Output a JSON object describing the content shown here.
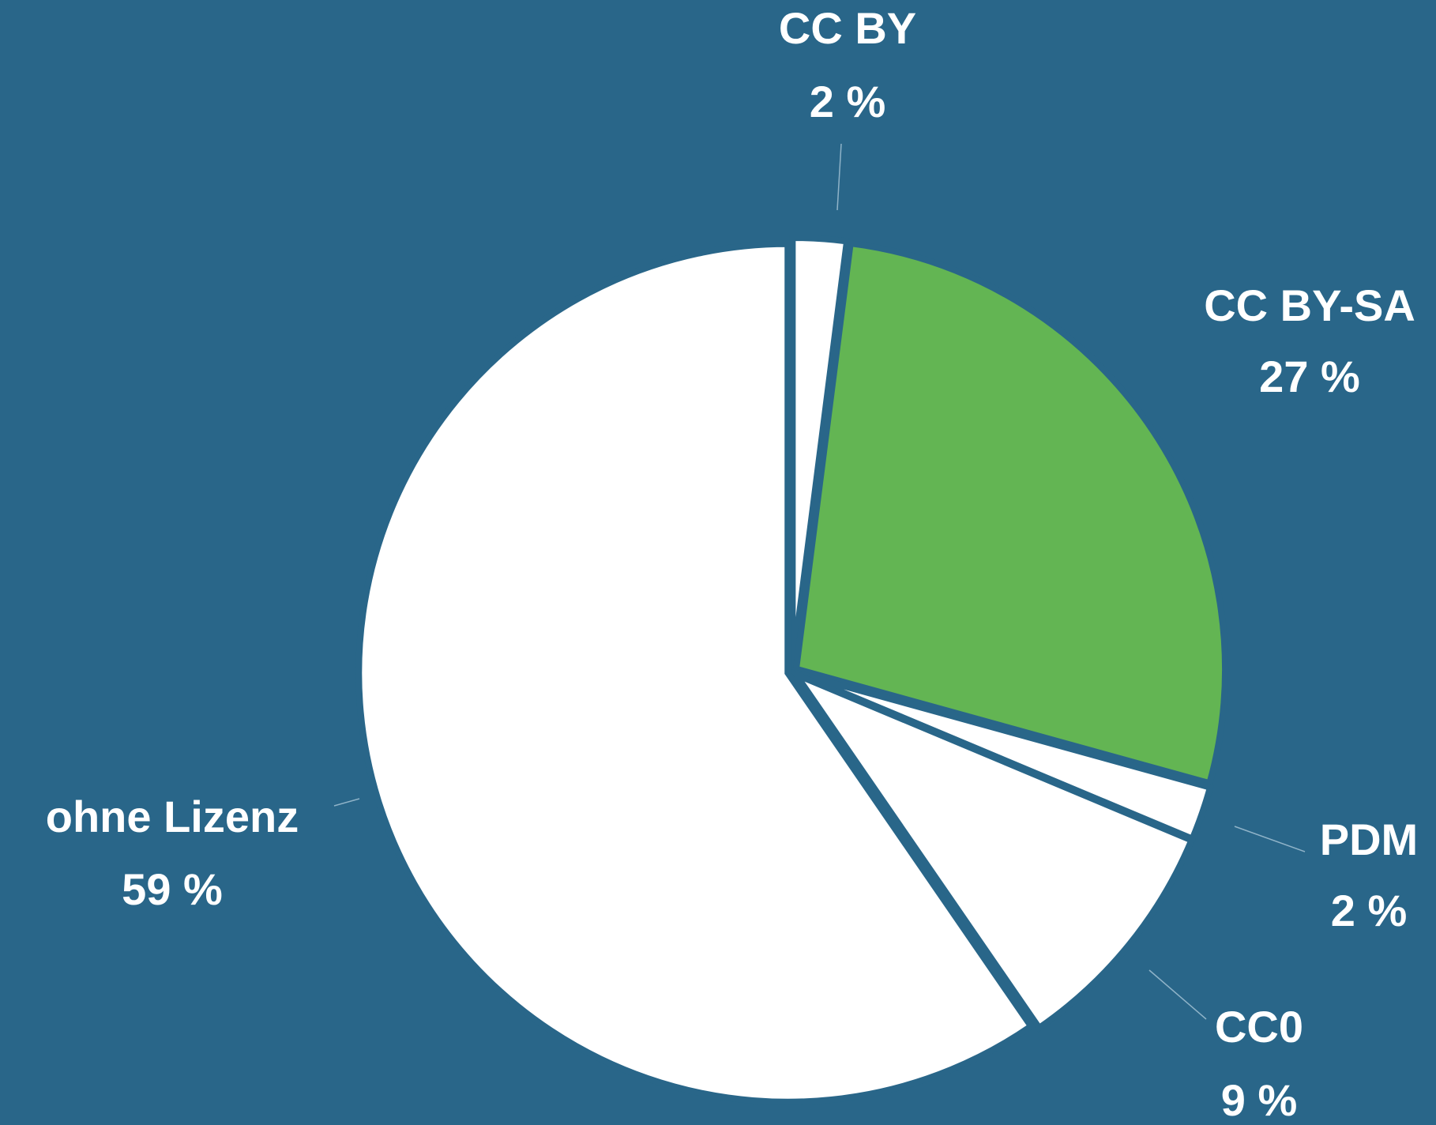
{
  "chart_data": {
    "type": "pie",
    "categories": [
      "CC BY",
      "CC BY-SA",
      "PDM",
      "CC0",
      "ohne Lizenz"
    ],
    "values": [
      2,
      27,
      2,
      9,
      59
    ],
    "value_labels": [
      "2 %",
      "27 %",
      "2 %",
      "9 %",
      "59 %"
    ],
    "colors": [
      "#ffffff",
      "#63b553",
      "#ffffff",
      "#ffffff",
      "#ffffff"
    ],
    "background": "#296689"
  }
}
